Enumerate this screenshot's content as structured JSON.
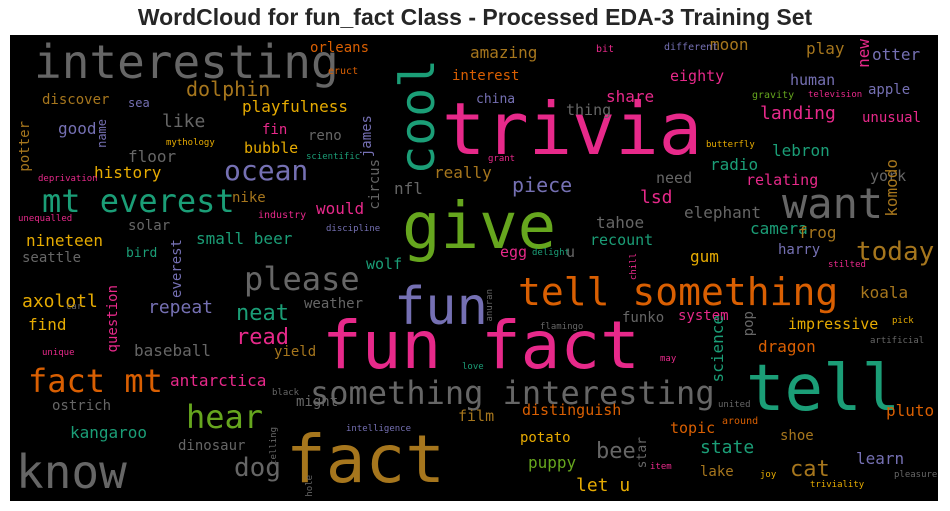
{
  "title": "WordCloud for fun_fact Class - Processed EDA-3 Training Set",
  "colors": {
    "pink": "#e7298a",
    "green": "#1b9e77",
    "orange": "#d95f02",
    "purple": "#7570b3",
    "lime": "#66a61e",
    "gold": "#a6761d",
    "yellow": "#e6ab02",
    "gray": "#666666"
  },
  "words": [
    "interesting",
    "trivia",
    "cool",
    "give",
    "want",
    "mt everest",
    "ocean",
    "please",
    "fun",
    "tell something",
    "fun fact",
    "tell",
    "something interesting",
    "fact mt",
    "hear",
    "know",
    "fact",
    "dog",
    "today",
    "read",
    "neat",
    "axolotl",
    "dolphin",
    "amazing",
    "moon",
    "play",
    "new",
    "otter",
    "orleans",
    "eruct",
    "bit",
    "different",
    "interest",
    "eighty",
    "human",
    "apple",
    "discover",
    "sea",
    "playfulness",
    "china",
    "share",
    "thing",
    "gravity",
    "television",
    "good",
    "name",
    "like",
    "potter",
    "landing",
    "unusual",
    "floor",
    "fin",
    "reno",
    "mythology",
    "bubble",
    "history",
    "james",
    "circus",
    "scientific",
    "grant",
    "butterfly",
    "lebron",
    "radio",
    "deprivation",
    "really",
    "nfl",
    "need",
    "relating",
    "york",
    "piece",
    "komodo",
    "nike",
    "industry",
    "would",
    "lsd",
    "elephant",
    "unequalled",
    "solar",
    "discipline",
    "tahoe",
    "camera",
    "frog",
    "nineteen",
    "small beer",
    "recount",
    "harry",
    "seattle",
    "bird",
    "everest",
    "egg",
    "delight",
    "u",
    "gum",
    "stilted",
    "wolf",
    "chill",
    "repeat",
    "question",
    "weather",
    "koala",
    "funko",
    "pop",
    "system",
    "find",
    "car",
    "anuran",
    "impressive",
    "pick",
    "flamingo",
    "science",
    "dragon",
    "unique",
    "baseball",
    "yield",
    "artificial",
    "love",
    "may",
    "antarctica",
    "might",
    "black",
    "united",
    "ostrich",
    "distinguish",
    "film",
    "pluto",
    "topic",
    "around",
    "kangaroo",
    "intelligence",
    "potato",
    "shoe",
    "state",
    "dinosaur",
    "telling",
    "bee",
    "learn",
    "star",
    "puppy",
    "cat",
    "let u",
    "item",
    "lake",
    "joy",
    "triviality",
    "hole",
    "pleasure"
  ]
}
